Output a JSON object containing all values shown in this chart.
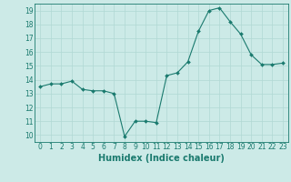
{
  "x": [
    0,
    1,
    2,
    3,
    4,
    5,
    6,
    7,
    8,
    9,
    10,
    11,
    12,
    13,
    14,
    15,
    16,
    17,
    18,
    19,
    20,
    21,
    22,
    23
  ],
  "y": [
    13.5,
    13.7,
    13.7,
    13.9,
    13.3,
    13.2,
    13.2,
    13.0,
    9.9,
    11.0,
    11.0,
    10.9,
    14.3,
    14.5,
    15.3,
    17.5,
    19.0,
    19.2,
    18.2,
    17.3,
    15.8,
    15.1,
    15.1,
    15.2
  ],
  "line_color": "#1a7a6e",
  "marker_color": "#1a7a6e",
  "bg_color": "#cceae7",
  "grid_color": "#b0d8d4",
  "xlabel": "Humidex (Indice chaleur)",
  "ylim": [
    9.5,
    19.5
  ],
  "xlim": [
    -0.5,
    23.5
  ],
  "yticks": [
    10,
    11,
    12,
    13,
    14,
    15,
    16,
    17,
    18,
    19
  ],
  "xticks": [
    0,
    1,
    2,
    3,
    4,
    5,
    6,
    7,
    8,
    9,
    10,
    11,
    12,
    13,
    14,
    15,
    16,
    17,
    18,
    19,
    20,
    21,
    22,
    23
  ],
  "tick_label_fontsize": 5.5,
  "xlabel_fontsize": 7.0
}
